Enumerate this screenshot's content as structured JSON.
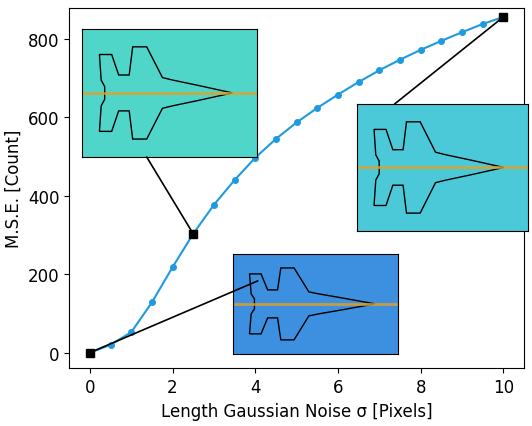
{
  "chart_data": {
    "type": "line",
    "x_label": "Length Gaussian Noise σ [Pixels]",
    "y_label": "M.S.E. [Count]",
    "x": [
      0,
      0.5,
      1,
      1.5,
      2,
      2.5,
      3,
      3.5,
      4,
      4.5,
      5,
      5.5,
      6,
      6.5,
      7,
      7.5,
      8,
      8.5,
      9,
      9.5,
      10
    ],
    "values": [
      0,
      20,
      52,
      128,
      218,
      303,
      377,
      440,
      497,
      545,
      587,
      624,
      658,
      690,
      720,
      747,
      772,
      795,
      817,
      838,
      856
    ],
    "color": "#1e9be0",
    "marker": "circle",
    "highlight_x": [
      0,
      2.5,
      10
    ],
    "xlim": [
      -0.5,
      10.5
    ],
    "ylim": [
      -40,
      880
    ],
    "xticks": [
      0,
      2,
      4,
      6,
      8,
      10
    ],
    "yticks": [
      0,
      200,
      400,
      600,
      800
    ],
    "grid": false
  }
}
